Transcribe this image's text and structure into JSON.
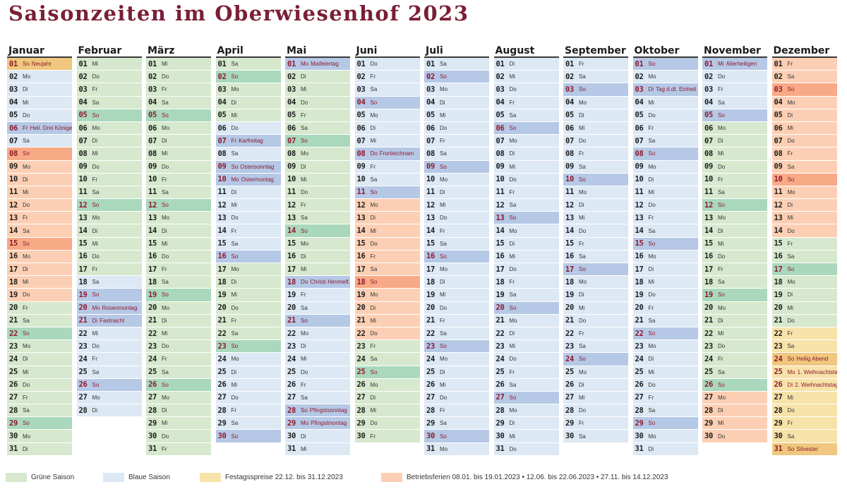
{
  "title": "Saisonzeiten im Oberwiesenhof 2023",
  "colors": {
    "green": "#d6e8cd",
    "blue": "#dce8f4",
    "yellow": "#f7e2a9",
    "orange": "#fccfb4",
    "green_sunday": "#a9d8bd",
    "blue_sunday": "#b5c8e6",
    "holiday_text": "#8e1a2e",
    "title": "#7a1f35"
  },
  "months": [
    {
      "name": "Januar",
      "days_in_month": 31,
      "first_weekday": 6,
      "seasons": [
        {
          "from": 1,
          "to": 1,
          "s": "yellow"
        },
        {
          "from": 2,
          "to": 7,
          "s": "blue"
        },
        {
          "from": 8,
          "to": 19,
          "s": "orange"
        },
        {
          "from": 20,
          "to": 31,
          "s": "green"
        }
      ],
      "notes": {
        "1": "Neujahr",
        "6": "Heil. Drei Könige"
      }
    },
    {
      "name": "Februar",
      "days_in_month": 28,
      "first_weekday": 2,
      "seasons": [
        {
          "from": 1,
          "to": 17,
          "s": "green"
        },
        {
          "from": 18,
          "to": 28,
          "s": "blue"
        }
      ],
      "notes": {
        "20": "Rosenmontag",
        "21": "Fastnacht"
      }
    },
    {
      "name": "März",
      "days_in_month": 31,
      "first_weekday": 2,
      "seasons": [
        {
          "from": 1,
          "to": 31,
          "s": "green"
        }
      ],
      "notes": {}
    },
    {
      "name": "April",
      "days_in_month": 30,
      "first_weekday": 5,
      "seasons": [
        {
          "from": 1,
          "to": 5,
          "s": "green"
        },
        {
          "from": 6,
          "to": 16,
          "s": "blue"
        },
        {
          "from": 17,
          "to": 23,
          "s": "green"
        },
        {
          "from": 24,
          "to": 30,
          "s": "blue"
        }
      ],
      "notes": {
        "7": "Karfreitag",
        "9": "Ostersonntag",
        "10": "Ostermontag"
      }
    },
    {
      "name": "Mai",
      "days_in_month": 31,
      "first_weekday": 0,
      "seasons": [
        {
          "from": 1,
          "to": 14,
          "s": "green"
        },
        {
          "from": 15,
          "to": 17,
          "s": "green"
        },
        {
          "from": 18,
          "to": 31,
          "s": "blue"
        }
      ],
      "notes": {
        "1": "Maifeiertag",
        "18": "Christi Himmelf.",
        "28": "Pfingstsonntag",
        "29": "Pfingstmontag"
      }
    },
    {
      "name": "Juni",
      "days_in_month": 30,
      "first_weekday": 3,
      "seasons": [
        {
          "from": 1,
          "to": 11,
          "s": "blue"
        },
        {
          "from": 12,
          "to": 22,
          "s": "orange"
        },
        {
          "from": 23,
          "to": 30,
          "s": "green"
        }
      ],
      "notes": {
        "8": "Fronleichnam"
      }
    },
    {
      "name": "Juli",
      "days_in_month": 31,
      "first_weekday": 5,
      "seasons": [
        {
          "from": 1,
          "to": 31,
          "s": "blue"
        }
      ],
      "notes": {}
    },
    {
      "name": "August",
      "days_in_month": 31,
      "first_weekday": 1,
      "seasons": [
        {
          "from": 1,
          "to": 31,
          "s": "blue"
        }
      ],
      "notes": {}
    },
    {
      "name": "September",
      "days_in_month": 30,
      "first_weekday": 4,
      "seasons": [
        {
          "from": 1,
          "to": 30,
          "s": "blue"
        }
      ],
      "notes": {}
    },
    {
      "name": "Oktober",
      "days_in_month": 31,
      "first_weekday": 6,
      "seasons": [
        {
          "from": 1,
          "to": 31,
          "s": "blue"
        }
      ],
      "notes": {
        "3": "Tag d.dt. Einheit"
      }
    },
    {
      "name": "November",
      "days_in_month": 30,
      "first_weekday": 2,
      "seasons": [
        {
          "from": 1,
          "to": 5,
          "s": "blue"
        },
        {
          "from": 6,
          "to": 26,
          "s": "green"
        },
        {
          "from": 27,
          "to": 30,
          "s": "orange"
        }
      ],
      "notes": {
        "1": "Allerheiligen"
      }
    },
    {
      "name": "Dezember",
      "days_in_month": 31,
      "first_weekday": 4,
      "seasons": [
        {
          "from": 1,
          "to": 14,
          "s": "orange"
        },
        {
          "from": 15,
          "to": 21,
          "s": "green"
        },
        {
          "from": 22,
          "to": 31,
          "s": "yellow"
        }
      ],
      "notes": {
        "24": "Heilig Abend",
        "25": "1. Weihnachtstag",
        "26": "2. Weihnachtstag",
        "31": "Silvester"
      }
    }
  ],
  "weekday_abbr": [
    "Mo",
    "Di",
    "Mi",
    "Do",
    "Fr",
    "Sa",
    "So"
  ],
  "legend": [
    {
      "label": "Grüne Saison",
      "color": "#d6e8cd"
    },
    {
      "label": "Blaue Saison",
      "color": "#dce8f4"
    },
    {
      "label": "Festagsspreise 22.12. bis 31.12.2023",
      "color": "#f7e2a9"
    },
    {
      "label": "Betriebsferien 08.01. bis 19.01.2023 • 12.06. bis 22.06.2023 • 27.11. bis 14.12.2023",
      "color": "#fccfb4"
    }
  ]
}
